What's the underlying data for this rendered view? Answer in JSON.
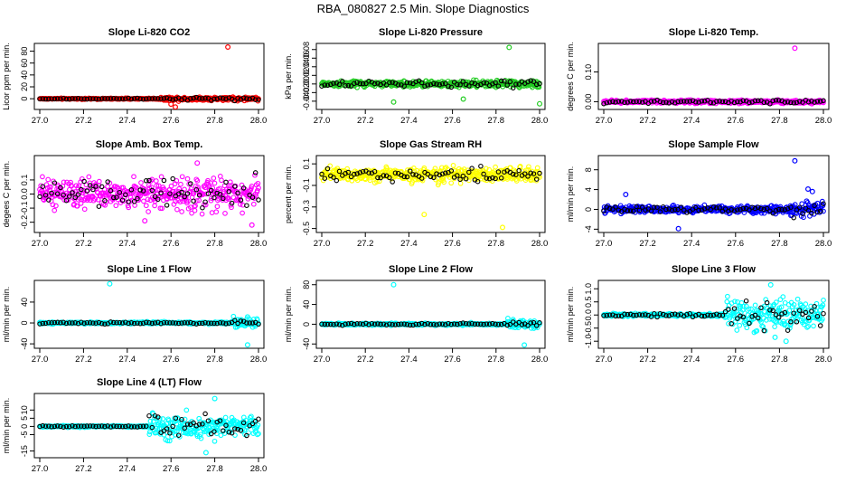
{
  "page": {
    "title": "RBA_080827  2.5 Min. Slope Diagnostics"
  },
  "colors": {
    "red": "#ff0000",
    "green": "#22cc22",
    "magenta": "#ff00ff",
    "yellow": "#ffff00",
    "blue": "#0000ff",
    "cyan": "#00ffff",
    "black": "#000000"
  },
  "chart_data": [
    {
      "type": "scatter",
      "title": "Slope Li-820 CO2",
      "ylabel": "Licor ppm per min.",
      "xlim": [
        27.0,
        28.0
      ],
      "ylim": [
        -15,
        90
      ],
      "xticks": [
        "27.0",
        "27.2",
        "27.4",
        "27.6",
        "27.8",
        "28.0"
      ],
      "yticks": [
        "0",
        "20",
        "40",
        "60",
        "80"
      ],
      "color_name": "red",
      "noise": 0.7,
      "late_noise": 2.2,
      "late_start": 27.55,
      "points": [
        {
          "x": 27.62,
          "y": -14
        },
        {
          "x": 27.6,
          "y": -9
        },
        {
          "x": 27.86,
          "y": 87
        }
      ]
    },
    {
      "type": "scatter",
      "title": "Slope Li-820 Pressure",
      "ylabel": "kPa per min.",
      "xlim": [
        27.0,
        28.0
      ],
      "ylim": [
        -0.055,
        0.09
      ],
      "xticks": [
        "27.0",
        "27.2",
        "27.4",
        "27.6",
        "27.8",
        "28.0"
      ],
      "yticks": [
        "-0.04",
        "-0.02",
        "0.00",
        "0.02",
        "0.04",
        "0.06",
        "0.08"
      ],
      "color_name": "green",
      "noise": 0.005,
      "late_noise": 0.006,
      "late_start": 27.6,
      "points": [
        {
          "x": 27.86,
          "y": 0.085
        },
        {
          "x": 27.33,
          "y": -0.042
        },
        {
          "x": 28.0,
          "y": -0.046
        },
        {
          "x": 27.65,
          "y": -0.035
        }
      ]
    },
    {
      "type": "scatter",
      "title": "Slope Li-820 Temp.",
      "ylabel": "degrees C per min.",
      "xlim": [
        27.0,
        28.0
      ],
      "ylim": [
        -0.02,
        0.19
      ],
      "xticks": [
        "27.0",
        "27.2",
        "27.4",
        "27.6",
        "27.8",
        "28.0"
      ],
      "yticks": [
        "0.00",
        "0.10"
      ],
      "color_name": "magenta",
      "noise": 0.004,
      "late_noise": 0.004,
      "late_start": 27.6,
      "points": [
        {
          "x": 27.87,
          "y": 0.18
        }
      ]
    },
    {
      "type": "scatter",
      "title": "Slope Amb. Box Temp.",
      "ylabel": "degees C per min.",
      "xlim": [
        27.0,
        28.0
      ],
      "ylim": [
        -0.26,
        0.26
      ],
      "xticks": [
        "27.0",
        "27.2",
        "27.4",
        "27.6",
        "27.8",
        "28.0"
      ],
      "yticks": [
        "-0.2",
        "-0.1",
        "0.0",
        "0.1"
      ],
      "color_name": "magenta",
      "noise": 0.07,
      "late_noise": 0.08,
      "late_start": 27.6,
      "points": [
        {
          "x": 27.48,
          "y": -0.19
        },
        {
          "x": 27.97,
          "y": -0.22
        },
        {
          "x": 27.72,
          "y": 0.22
        }
      ]
    },
    {
      "type": "scatter",
      "title": "Slope Gas Stream RH",
      "ylabel": "percent per min.",
      "xlim": [
        27.0,
        28.0
      ],
      "ylim": [
        -0.52,
        0.16
      ],
      "xticks": [
        "27.0",
        "27.2",
        "27.4",
        "27.6",
        "27.8",
        "28.0"
      ],
      "yticks": [
        "-0.5",
        "-0.3",
        "-0.1",
        "0.1"
      ],
      "color_name": "yellow",
      "noise": 0.045,
      "late_noise": 0.05,
      "late_start": 27.6,
      "points": [
        {
          "x": 27.47,
          "y": -0.37
        },
        {
          "x": 27.83,
          "y": -0.49
        }
      ]
    },
    {
      "type": "scatter",
      "title": "Slope Sample Flow",
      "ylabel": "ml/min per min.",
      "xlim": [
        27.0,
        28.0
      ],
      "ylim": [
        -4.3,
        10.5
      ],
      "xticks": [
        "27.0",
        "27.2",
        "27.4",
        "27.6",
        "27.8",
        "28.0"
      ],
      "yticks": [
        "-4",
        "0",
        "4",
        "8"
      ],
      "color_name": "blue",
      "noise": 0.5,
      "late_noise": 1.1,
      "late_start": 27.85,
      "points": [
        {
          "x": 27.87,
          "y": 9.8
        },
        {
          "x": 27.93,
          "y": 4.1
        },
        {
          "x": 27.95,
          "y": 3.6
        },
        {
          "x": 27.34,
          "y": -3.9
        },
        {
          "x": 27.1,
          "y": 3.0
        }
      ]
    },
    {
      "type": "scatter",
      "title": "Slope Line 1 Flow",
      "ylabel": "ml/min per min.",
      "xlim": [
        27.0,
        28.0
      ],
      "ylim": [
        -45,
        78
      ],
      "xticks": [
        "27.0",
        "27.2",
        "27.4",
        "27.6",
        "27.8",
        "28.0"
      ],
      "yticks": [
        "-40",
        "0",
        "40"
      ],
      "color_name": "cyan",
      "noise": 1.4,
      "late_noise": 6.5,
      "late_start": 27.88,
      "points": [
        {
          "x": 27.32,
          "y": 75
        },
        {
          "x": 27.95,
          "y": -42
        }
      ]
    },
    {
      "type": "scatter",
      "title": "Slope Line 2 Flow",
      "ylabel": "ml/min per min.",
      "xlim": [
        27.0,
        28.0
      ],
      "ylim": [
        -45,
        85
      ],
      "xticks": [
        "27.0",
        "27.2",
        "27.4",
        "27.6",
        "27.8",
        "28.0"
      ],
      "yticks": [
        "-40",
        "0",
        "40",
        "80"
      ],
      "color_name": "cyan",
      "noise": 1.5,
      "late_noise": 7,
      "late_start": 27.85,
      "points": [
        {
          "x": 27.33,
          "y": 80
        },
        {
          "x": 27.93,
          "y": -42
        }
      ]
    },
    {
      "type": "scatter",
      "title": "Slope Line 3 Flow",
      "ylabel": "ml/min per min.",
      "xlim": [
        27.0,
        28.0
      ],
      "ylim": [
        -1.2,
        1.25
      ],
      "xticks": [
        "27.0",
        "27.2",
        "27.4",
        "27.6",
        "27.8",
        "28.0"
      ],
      "yticks": [
        "-1.0",
        "-0.5",
        "0.0",
        "0.5",
        "1.0"
      ],
      "color_name": "cyan",
      "noise": 0.04,
      "late_noise": 0.42,
      "late_start": 27.55,
      "points": [
        {
          "x": 27.76,
          "y": 1.15
        },
        {
          "x": 27.83,
          "y": -1.0
        },
        {
          "x": 27.78,
          "y": -0.85
        }
      ]
    },
    {
      "type": "scatter",
      "title": "Slope Line 4 (LT) Flow",
      "ylabel": "ml/min per min.",
      "xlim": [
        27.0,
        28.0
      ],
      "ylim": [
        -18,
        19
      ],
      "xticks": [
        "27.0",
        "27.2",
        "27.4",
        "27.6",
        "27.8",
        "28.0"
      ],
      "yticks": [
        "-15",
        "-5",
        "0",
        "5",
        "10"
      ],
      "color_name": "cyan",
      "noise": 0.35,
      "late_noise": 5,
      "late_start": 27.5,
      "points": [
        {
          "x": 27.8,
          "y": 17
        },
        {
          "x": 27.76,
          "y": -16
        }
      ]
    }
  ]
}
